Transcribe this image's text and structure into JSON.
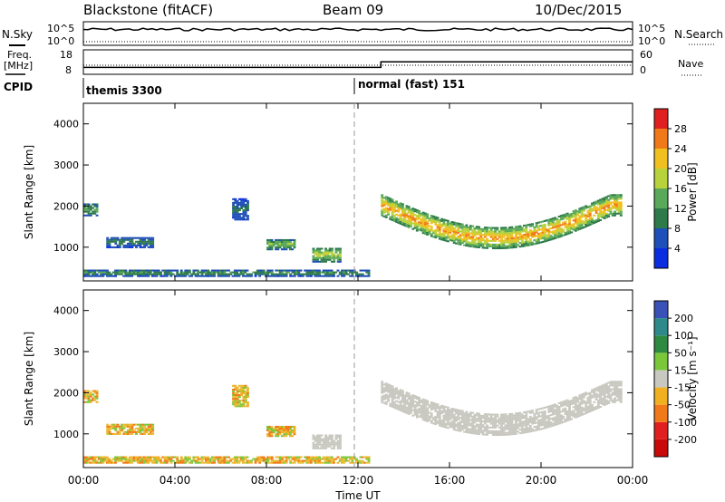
{
  "header": {
    "station": "Blackstone (fitACF)",
    "beam": "Beam 09",
    "date": "10/Dec/2015"
  },
  "noise_panel": {
    "left_label": "N.Sky",
    "right_label": "N.Search",
    "tick_top": "10^5",
    "tick_bottom": "10^0"
  },
  "freq_panel": {
    "left_label_1": "Freq.",
    "left_label_2": "[MHz]",
    "right_label": "Nave",
    "left_ticks": [
      "18",
      "8"
    ],
    "right_ticks": [
      "60",
      "0"
    ],
    "freq_steps": [
      {
        "hour": 0,
        "mhz": 10.8
      },
      {
        "hour": 13,
        "mhz": 13.1
      },
      {
        "hour": 24,
        "mhz": 13.1
      }
    ]
  },
  "cpid": {
    "label": "CPID",
    "segments": [
      {
        "name": "themis 3300",
        "start_hour": 0
      },
      {
        "name": "normal (fast) 151",
        "start_hour": 12
      }
    ]
  },
  "power_colorbar": {
    "title": "Power [dB]",
    "ticks": [
      "4",
      "8",
      "12",
      "16",
      "20",
      "24",
      "28"
    ],
    "colors": [
      "#0a2de0",
      "#1f4fb8",
      "#2e7a4a",
      "#5aa85a",
      "#b8d23c",
      "#f0c020",
      "#f07a1a",
      "#e02020"
    ]
  },
  "velocity_colorbar": {
    "title": "Velocity [m s⁻¹]",
    "ticks": [
      "200",
      "100",
      "50",
      "15",
      "-15",
      "-50",
      "-100",
      "-200"
    ],
    "colors": [
      "#3a52b8",
      "#2e8a8a",
      "#2e8a40",
      "#7ac83a",
      "#c8c8c0",
      "#f0b020",
      "#f07a1a",
      "#e02020",
      "#c80a0a"
    ]
  },
  "chart_data": {
    "type": "heatmap",
    "xlabel": "Time UT",
    "ylabel": "Slant Range [km]",
    "x_ticks": [
      "00:00",
      "04:00",
      "08:00",
      "12:00",
      "16:00",
      "20:00",
      "00:00"
    ],
    "x_range_hours": [
      0,
      24
    ],
    "y_ticks": [
      "1000",
      "2000",
      "3000",
      "4000"
    ],
    "y_range_km": [
      180,
      4500
    ],
    "echo_regions": [
      {
        "start_hour": 0.0,
        "end_hour": 0.6,
        "center_km": 1900,
        "width_km": 300,
        "power_db": 13
      },
      {
        "start_hour": 1.0,
        "end_hour": 3.0,
        "center_km": 1100,
        "width_km": 250,
        "power_db": 10
      },
      {
        "start_hour": 6.5,
        "end_hour": 7.2,
        "center_km": 1900,
        "width_km": 500,
        "power_db": 9
      },
      {
        "start_hour": 8.0,
        "end_hour": 9.2,
        "center_km": 1050,
        "width_km": 250,
        "power_db": 16
      },
      {
        "start_hour": 10.0,
        "end_hour": 11.2,
        "center_km": 800,
        "width_km": 350,
        "power_db": 18
      },
      {
        "start_hour": 13.0,
        "end_hour": 23.5,
        "center_km": 1500,
        "width_km": 500,
        "power_db": 24
      },
      {
        "start_hour": 0.0,
        "end_hour": 12.5,
        "center_km": 350,
        "width_km": 150,
        "power_db": 12
      }
    ],
    "velocity_summary": "Post-12:00 arc mostly ±15 m/s (ground scatter); early echoes -50 to -100 m/s"
  }
}
